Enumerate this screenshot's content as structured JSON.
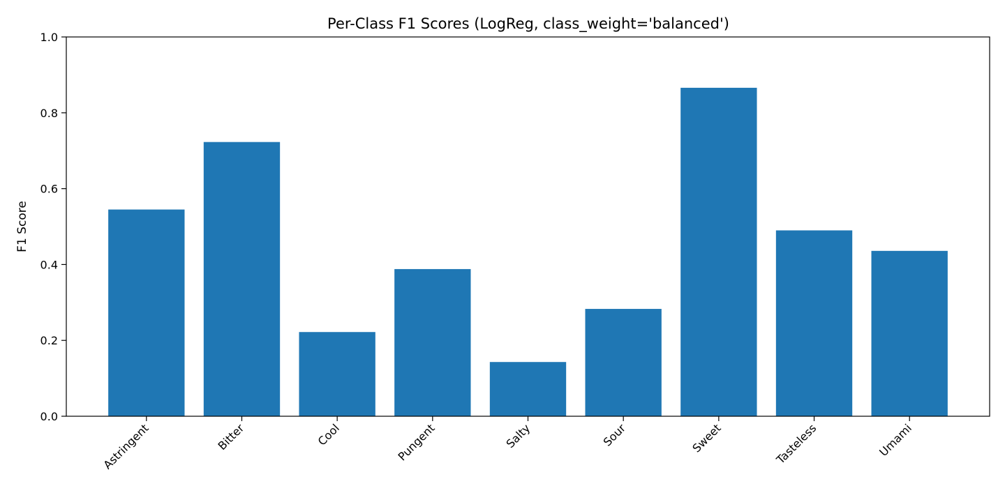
{
  "chart_data": {
    "type": "bar",
    "title": "Per-Class F1 Scores (LogReg, class_weight='balanced')",
    "xlabel": "",
    "ylabel": "F1 Score",
    "ylim": [
      0,
      1.0
    ],
    "yticks": [
      "0.0",
      "0.2",
      "0.4",
      "0.6",
      "0.8",
      "1.0"
    ],
    "categories": [
      "Astringent",
      "Bitter",
      "Cool",
      "Pungent",
      "Salty",
      "Sour",
      "Sweet",
      "Tasteless",
      "Umami"
    ],
    "values": [
      0.545,
      0.723,
      0.222,
      0.388,
      0.143,
      0.283,
      0.866,
      0.49,
      0.436
    ],
    "bar_color": "#1f77b4",
    "grid": false,
    "legend": "none"
  }
}
